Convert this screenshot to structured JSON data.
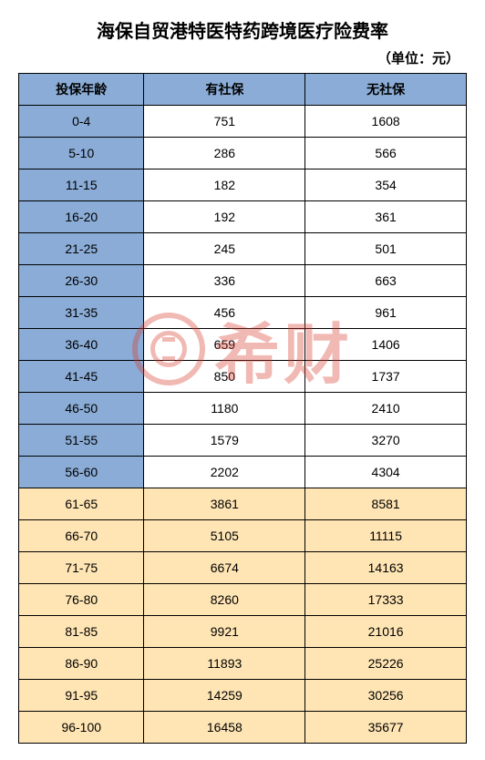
{
  "title": "海保自贸港特医特药跨境医疗险费率",
  "unit": "（单位：元）",
  "watermark_text": "希财",
  "watermark_color": "#d93a2b",
  "header_bg": "#8aacd6",
  "group1_age_bg": "#8aacd6",
  "group1_val_bg": "#ffffff",
  "group2_bg": "#ffe5b4",
  "columns": [
    "投保年龄",
    "有社保",
    "无社保"
  ],
  "rows": [
    {
      "age": "0-4",
      "with": "751",
      "without": "1608",
      "group": 1
    },
    {
      "age": "5-10",
      "with": "286",
      "without": "566",
      "group": 1
    },
    {
      "age": "11-15",
      "with": "182",
      "without": "354",
      "group": 1
    },
    {
      "age": "16-20",
      "with": "192",
      "without": "361",
      "group": 1
    },
    {
      "age": "21-25",
      "with": "245",
      "without": "501",
      "group": 1
    },
    {
      "age": "26-30",
      "with": "336",
      "without": "663",
      "group": 1
    },
    {
      "age": "31-35",
      "with": "456",
      "without": "961",
      "group": 1
    },
    {
      "age": "36-40",
      "with": "659",
      "without": "1406",
      "group": 1
    },
    {
      "age": "41-45",
      "with": "850",
      "without": "1737",
      "group": 1
    },
    {
      "age": "46-50",
      "with": "1180",
      "without": "2410",
      "group": 1
    },
    {
      "age": "51-55",
      "with": "1579",
      "without": "3270",
      "group": 1
    },
    {
      "age": "56-60",
      "with": "2202",
      "without": "4304",
      "group": 1
    },
    {
      "age": "61-65",
      "with": "3861",
      "without": "8581",
      "group": 2
    },
    {
      "age": "66-70",
      "with": "5105",
      "without": "11115",
      "group": 2
    },
    {
      "age": "71-75",
      "with": "6674",
      "without": "14163",
      "group": 2
    },
    {
      "age": "76-80",
      "with": "8260",
      "without": "17333",
      "group": 2
    },
    {
      "age": "81-85",
      "with": "9921",
      "without": "21016",
      "group": 2
    },
    {
      "age": "86-90",
      "with": "11893",
      "without": "25226",
      "group": 2
    },
    {
      "age": "91-95",
      "with": "14259",
      "without": "30256",
      "group": 2
    },
    {
      "age": "96-100",
      "with": "16458",
      "without": "35677",
      "group": 2
    }
  ]
}
